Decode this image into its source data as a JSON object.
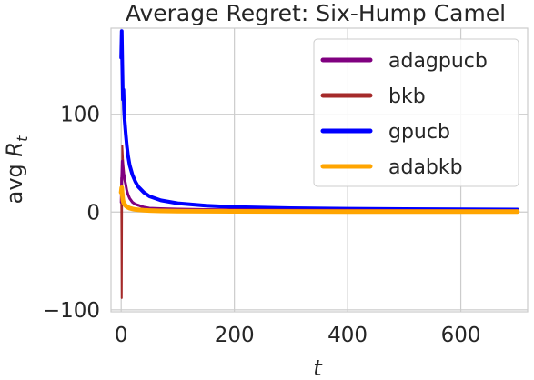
{
  "chart_data": {
    "type": "line",
    "title": "Average Regret: Six-Hump Camel",
    "xlabel": "t",
    "ylabel": "avg",
    "ylabel_math": "R",
    "ylabel_sub": "t",
    "xlim": [
      -18,
      718
    ],
    "ylim": [
      -102,
      188
    ],
    "xticks": [
      0,
      200,
      400,
      600
    ],
    "yticks": [
      -100,
      0,
      100
    ],
    "xtick_labels": [
      "0",
      "200",
      "400",
      "600"
    ],
    "ytick_labels": [
      "−100",
      "0",
      "100"
    ],
    "grid": true,
    "legend_position": "top-right",
    "series": [
      {
        "name": "adagpucb",
        "color": "#800080",
        "x": [
          0,
          1,
          2,
          3,
          4,
          5,
          6,
          8,
          10,
          12,
          15,
          20,
          25,
          30,
          40,
          50,
          70,
          100,
          150,
          200,
          300,
          400,
          500,
          600,
          700
        ],
        "y": [
          10,
          35,
          52,
          45,
          40,
          38,
          34,
          28,
          22,
          18,
          14,
          10,
          8,
          7,
          5,
          4,
          3.5,
          3,
          2.6,
          2.3,
          2,
          1.8,
          1.6,
          1.5,
          1.4
        ]
      },
      {
        "name": "bkb",
        "color": "#a52a2a",
        "x": [
          0,
          1,
          2,
          3,
          4,
          5,
          6,
          8,
          10,
          12,
          15,
          20,
          25,
          30,
          40,
          50,
          70,
          100,
          150,
          200,
          300,
          400,
          500,
          600,
          700
        ],
        "y": [
          35,
          -88,
          68,
          55,
          48,
          42,
          36,
          28,
          22,
          18,
          14,
          10,
          8,
          6.5,
          5,
          4,
          3.3,
          2.8,
          2.4,
          2.1,
          1.8,
          1.6,
          1.5,
          1.4,
          1.3
        ]
      },
      {
        "name": "gpucb",
        "color": "#0000ff",
        "x": [
          0,
          1,
          2,
          3,
          4,
          5,
          6,
          8,
          10,
          12,
          15,
          20,
          25,
          30,
          40,
          50,
          70,
          100,
          150,
          200,
          300,
          400,
          500,
          600,
          700
        ],
        "y": [
          158,
          185,
          150,
          115,
          125,
          105,
          95,
          80,
          68,
          58,
          48,
          38,
          31,
          26,
          20,
          16,
          12,
          9,
          6.5,
          5.2,
          4,
          3.4,
          3,
          2.8,
          2.6
        ]
      },
      {
        "name": "adabkb",
        "color": "#ffa500",
        "x": [
          0,
          1,
          2,
          3,
          4,
          5,
          6,
          8,
          10,
          12,
          15,
          20,
          25,
          30,
          40,
          50,
          70,
          100,
          150,
          200,
          300,
          400,
          500,
          600,
          700
        ],
        "y": [
          20,
          25,
          18,
          12,
          10,
          9,
          8,
          6.5,
          5.5,
          4.8,
          4,
          3.2,
          2.7,
          2.3,
          1.8,
          1.5,
          1.2,
          1,
          0.8,
          0.7,
          0.6,
          0.5,
          0.5,
          0.5,
          0.5
        ]
      }
    ]
  }
}
